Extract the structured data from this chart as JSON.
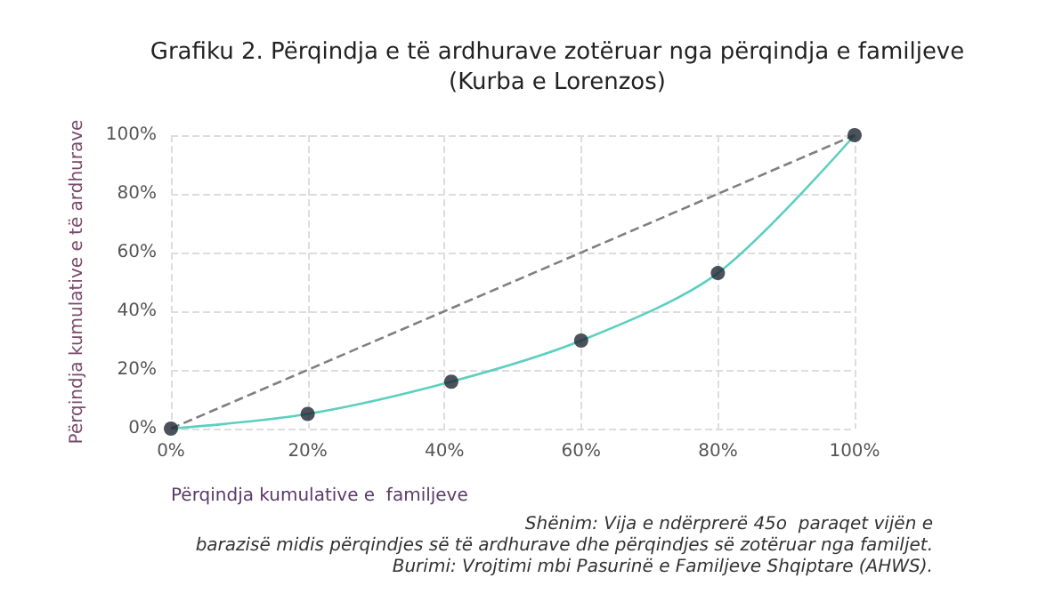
{
  "chart_data": {
    "type": "line",
    "title": "Grafiku 2. Përqindja e të ardhurave zotëruar nga përqindja e familjeve\n(Kurba e Lorenzos)",
    "xlabel": "Përqindja kumulative e  familjeve",
    "ylabel": "Përqindja kumulative e të ardhurave",
    "x": [
      0,
      20,
      41,
      60,
      80,
      100
    ],
    "series": [
      {
        "color": "#5ccfbf",
        "marker": "none",
        "values": [
          0,
          5,
          16,
          30,
          53,
          100
        ]
      },
      {
        "type": "scatter",
        "color": "#1e2733",
        "marker": "circle",
        "values": [
          0,
          5,
          16,
          30,
          53,
          100
        ]
      },
      {
        "type": "line",
        "color": "#808080",
        "marker": "none",
        "line_style": "dashed",
        "x": [
          0,
          100
        ],
        "values": [
          0,
          100
        ]
      }
    ],
    "xlim": [
      0,
      100
    ],
    "ylim": [
      0,
      100
    ],
    "xticks": [
      {
        "value": 0,
        "label": "0%"
      },
      {
        "value": 20,
        "label": "20%"
      },
      {
        "value": 40,
        "label": "40%"
      },
      {
        "value": 60,
        "label": "60%"
      },
      {
        "value": 80,
        "label": "80%"
      },
      {
        "value": 100,
        "label": "100%"
      }
    ],
    "yticks": [
      {
        "value": 0,
        "label": "0%"
      },
      {
        "value": 20,
        "label": "20%"
      },
      {
        "value": 40,
        "label": "40%"
      },
      {
        "value": 60,
        "label": "60%"
      },
      {
        "value": 80,
        "label": "80%"
      },
      {
        "value": 100,
        "label": "100%"
      }
    ],
    "grid": true,
    "annotations": [
      "Shënim: Vija e ndërprerë 45o  paraqet vijën e\nbarazisë midis përqindjes së të ardhurave dhe përqindjes së zotëruar nga familjet.",
      "Burimi: Vrojtimi mbi Pasurinë e Familjeve Shqiptare (AHWS)."
    ]
  }
}
